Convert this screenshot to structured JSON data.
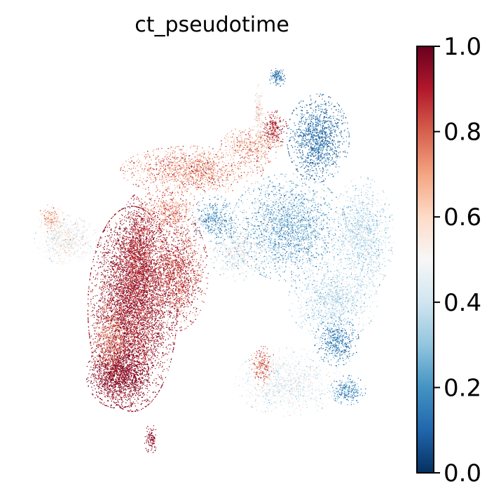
{
  "chart_data": {
    "type": "scatter",
    "title": "ct_pseudotime",
    "xlabel": "",
    "ylabel": "",
    "colormap": "RdBu_r",
    "color_range": [
      0.0,
      1.0
    ],
    "colorbar": {
      "ticks": [
        0.0,
        0.2,
        0.4,
        0.6,
        0.8,
        1.0
      ],
      "tick_labels": [
        "0.0",
        "0.2",
        "0.4",
        "0.6",
        "0.8",
        "1.0"
      ],
      "stops": [
        {
          "v": 0.0,
          "color": "#053061"
        },
        {
          "v": 0.1,
          "color": "#2166ac"
        },
        {
          "v": 0.2,
          "color": "#4393c3"
        },
        {
          "v": 0.3,
          "color": "#92c5de"
        },
        {
          "v": 0.4,
          "color": "#d1e5f0"
        },
        {
          "v": 0.5,
          "color": "#f7f7f7"
        },
        {
          "v": 0.6,
          "color": "#fddbc7"
        },
        {
          "v": 0.7,
          "color": "#f4a582"
        },
        {
          "v": 0.8,
          "color": "#d6604d"
        },
        {
          "v": 0.9,
          "color": "#b2182b"
        },
        {
          "v": 1.0,
          "color": "#67001f"
        }
      ]
    },
    "grid": false,
    "legend": "colorbar-right",
    "axes_visible": false,
    "clusters": [
      {
        "x": 0.28,
        "y": 0.38,
        "rx": 0.1,
        "ry": 0.21,
        "mean": 0.92,
        "spread": 0.08,
        "n": 5200
      },
      {
        "x": 0.24,
        "y": 0.22,
        "rx": 0.07,
        "ry": 0.07,
        "mean": 0.96,
        "spread": 0.05,
        "n": 1400
      },
      {
        "x": 0.4,
        "y": 0.47,
        "rx": 0.07,
        "ry": 0.12,
        "mean": 0.86,
        "spread": 0.1,
        "n": 1500
      },
      {
        "x": 0.3,
        "y": 0.52,
        "rx": 0.05,
        "ry": 0.12,
        "mean": 0.9,
        "spread": 0.08,
        "n": 1100
      },
      {
        "x": 0.22,
        "y": 0.3,
        "rx": 0.04,
        "ry": 0.08,
        "mean": 0.7,
        "spread": 0.1,
        "n": 500
      },
      {
        "x": 0.1,
        "y": 0.55,
        "rx": 0.07,
        "ry": 0.05,
        "mean": 0.5,
        "spread": 0.1,
        "n": 700
      },
      {
        "x": 0.06,
        "y": 0.6,
        "rx": 0.03,
        "ry": 0.03,
        "mean": 0.65,
        "spread": 0.1,
        "n": 180
      },
      {
        "x": 0.44,
        "y": 0.72,
        "rx": 0.16,
        "ry": 0.05,
        "mean": 0.72,
        "spread": 0.12,
        "n": 1500
      },
      {
        "x": 0.38,
        "y": 0.62,
        "rx": 0.07,
        "ry": 0.05,
        "mean": 0.75,
        "spread": 0.1,
        "n": 500
      },
      {
        "x": 0.6,
        "y": 0.78,
        "rx": 0.07,
        "ry": 0.04,
        "mean": 0.68,
        "spread": 0.12,
        "n": 500
      },
      {
        "x": 0.66,
        "y": 0.82,
        "rx": 0.03,
        "ry": 0.04,
        "mean": 0.88,
        "spread": 0.08,
        "n": 250
      },
      {
        "x": 0.5,
        "y": 0.6,
        "rx": 0.05,
        "ry": 0.05,
        "mean": 0.25,
        "spread": 0.12,
        "n": 450
      },
      {
        "x": 0.56,
        "y": 0.52,
        "rx": 0.06,
        "ry": 0.06,
        "mean": 0.45,
        "spread": 0.12,
        "n": 500
      },
      {
        "x": 0.7,
        "y": 0.58,
        "rx": 0.13,
        "ry": 0.11,
        "mean": 0.28,
        "spread": 0.12,
        "n": 2400
      },
      {
        "x": 0.78,
        "y": 0.8,
        "rx": 0.07,
        "ry": 0.09,
        "mean": 0.13,
        "spread": 0.08,
        "n": 1200
      },
      {
        "x": 0.9,
        "y": 0.56,
        "rx": 0.07,
        "ry": 0.12,
        "mean": 0.37,
        "spread": 0.08,
        "n": 1300
      },
      {
        "x": 0.82,
        "y": 0.4,
        "rx": 0.1,
        "ry": 0.08,
        "mean": 0.38,
        "spread": 0.08,
        "n": 1300
      },
      {
        "x": 0.83,
        "y": 0.3,
        "rx": 0.05,
        "ry": 0.05,
        "mean": 0.18,
        "spread": 0.1,
        "n": 450
      },
      {
        "x": 0.86,
        "y": 0.18,
        "rx": 0.04,
        "ry": 0.03,
        "mean": 0.22,
        "spread": 0.1,
        "n": 300
      },
      {
        "x": 0.7,
        "y": 0.2,
        "rx": 0.12,
        "ry": 0.07,
        "mean": 0.45,
        "spread": 0.08,
        "n": 1100
      },
      {
        "x": 0.63,
        "y": 0.24,
        "rx": 0.03,
        "ry": 0.04,
        "mean": 0.78,
        "spread": 0.08,
        "n": 200
      },
      {
        "x": 0.62,
        "y": 0.86,
        "rx": 0.01,
        "ry": 0.06,
        "mean": 0.55,
        "spread": 0.1,
        "n": 200
      },
      {
        "x": 0.67,
        "y": 0.95,
        "rx": 0.02,
        "ry": 0.02,
        "mean": 0.15,
        "spread": 0.08,
        "n": 120
      },
      {
        "x": 0.33,
        "y": 0.06,
        "rx": 0.015,
        "ry": 0.03,
        "mean": 0.95,
        "spread": 0.03,
        "n": 100
      }
    ]
  }
}
